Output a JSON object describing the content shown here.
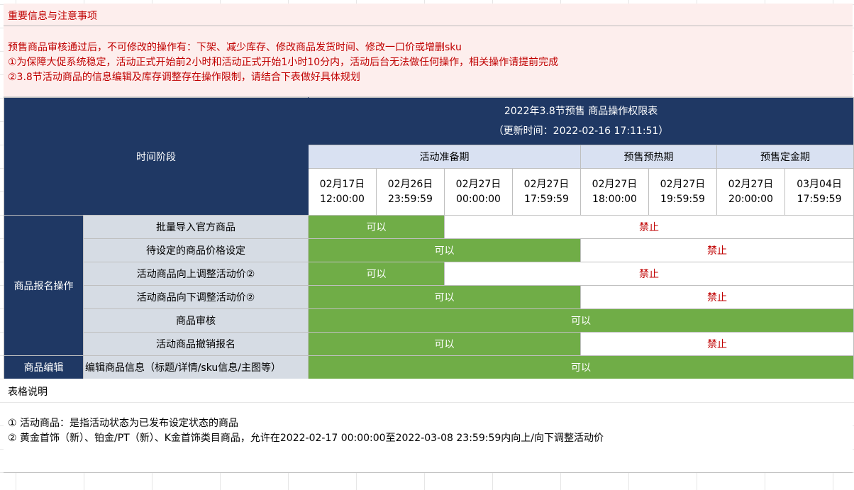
{
  "notice": {
    "heading": "重要信息与注意事项",
    "lines": [
      "预售商品审核通过后，不可修改的操作有：下架、减少库存、修改商品发货时间、修改一口价或增删sku",
      "①为保障大促系统稳定，活动正式开始前2小时和活动正式开始1小时10分内，活动后台无法做任何操作，相关操作请提前完成",
      "②3.8节活动商品的信息编辑及库存调整存在操作限制，请结合下表做好具体规划"
    ]
  },
  "table": {
    "title_line1": "2022年3.8节预售 商品操作权限表",
    "title_line2": "（更新时间：2022-02-16 17:11:51）",
    "time_stage_label": "时间阶段",
    "phases": [
      "活动准备期",
      "预售预热期",
      "预售定金期"
    ],
    "dates": [
      {
        "d": "02月17日",
        "t": "12:00:00"
      },
      {
        "d": "02月26日",
        "t": "23:59:59"
      },
      {
        "d": "02月27日",
        "t": "00:00:00"
      },
      {
        "d": "02月27日",
        "t": "17:59:59"
      },
      {
        "d": "02月27日",
        "t": "18:00:00"
      },
      {
        "d": "02月27日",
        "t": "19:59:59"
      },
      {
        "d": "02月27日",
        "t": "20:00:00"
      },
      {
        "d": "03月04日",
        "t": "17:59:59"
      }
    ],
    "group_signup": "商品报名操作",
    "group_edit": "商品编辑",
    "rows": [
      {
        "label": "批量导入官方商品",
        "yes": "可以",
        "no": "禁止"
      },
      {
        "label": "待设定的商品价格设定",
        "yes": "可以",
        "no": "禁止"
      },
      {
        "label": "活动商品向上调整活动价②",
        "yes": "可以",
        "no": "禁止"
      },
      {
        "label": "活动商品向下调整活动价②",
        "yes": "可以",
        "no": "禁止"
      },
      {
        "label": "商品审核",
        "yes": "可以"
      },
      {
        "label": "活动商品撤销报名",
        "yes": "可以",
        "no": "禁止"
      },
      {
        "label": "编辑商品信息（标题/详情/sku信息/主图等）",
        "yes": "可以"
      }
    ]
  },
  "footer": {
    "title": "表格说明",
    "notes": [
      "① 活动商品：是指活动状态为已发布设定状态的商品",
      "② 黄金首饰（新）、铂金/PT（新）、K金首饰类目商品，允许在2022-02-17 00:00:00至2022-03-08 23:59:59内向上/向下调整活动价"
    ]
  },
  "colors": {
    "navy": "#1f3864",
    "allowed_green": "#70ad47",
    "forbidden_red": "#c00000",
    "notice_bg": "#fdeeed",
    "phase_bg": "#d9e1f2",
    "label_bg": "#d6dce4"
  }
}
